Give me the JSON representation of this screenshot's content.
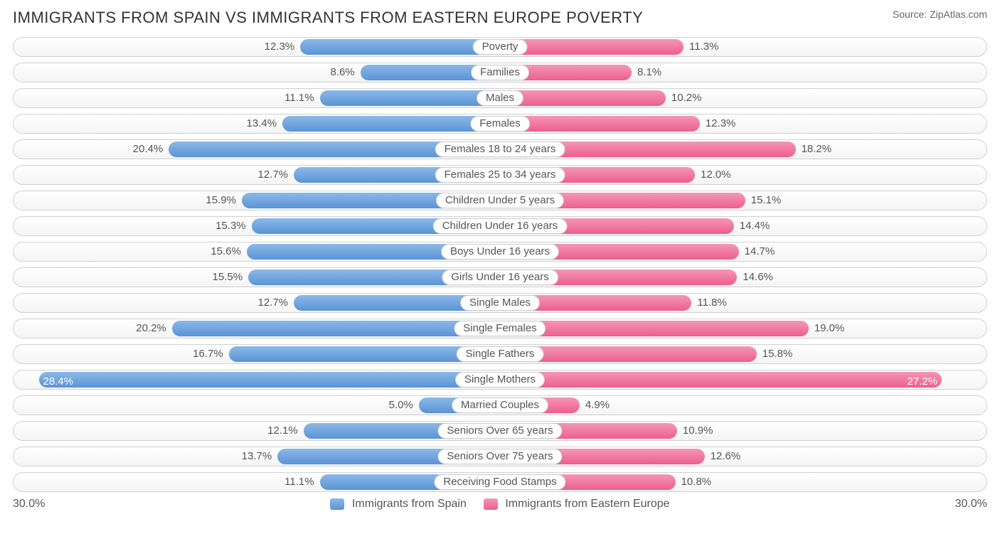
{
  "title": "IMMIGRANTS FROM SPAIN VS IMMIGRANTS FROM EASTERN EUROPE POVERTY",
  "source": "Source: ZipAtlas.com",
  "axis_max_label": "30.0%",
  "axis_max": 30.0,
  "inside_threshold": 27.0,
  "series": {
    "left": {
      "label": "Immigrants from Spain",
      "gradient_top": "#8bb9e8",
      "gradient_bottom": "#5a94d6"
    },
    "right": {
      "label": "Immigrants from Eastern Europe",
      "gradient_top": "#f596b6",
      "gradient_bottom": "#ec5f8f"
    }
  },
  "rows": [
    {
      "category": "Poverty",
      "left_val": 12.3,
      "left_label": "12.3%",
      "right_val": 11.3,
      "right_label": "11.3%"
    },
    {
      "category": "Families",
      "left_val": 8.6,
      "left_label": "8.6%",
      "right_val": 8.1,
      "right_label": "8.1%"
    },
    {
      "category": "Males",
      "left_val": 11.1,
      "left_label": "11.1%",
      "right_val": 10.2,
      "right_label": "10.2%"
    },
    {
      "category": "Females",
      "left_val": 13.4,
      "left_label": "13.4%",
      "right_val": 12.3,
      "right_label": "12.3%"
    },
    {
      "category": "Females 18 to 24 years",
      "left_val": 20.4,
      "left_label": "20.4%",
      "right_val": 18.2,
      "right_label": "18.2%"
    },
    {
      "category": "Females 25 to 34 years",
      "left_val": 12.7,
      "left_label": "12.7%",
      "right_val": 12.0,
      "right_label": "12.0%"
    },
    {
      "category": "Children Under 5 years",
      "left_val": 15.9,
      "left_label": "15.9%",
      "right_val": 15.1,
      "right_label": "15.1%"
    },
    {
      "category": "Children Under 16 years",
      "left_val": 15.3,
      "left_label": "15.3%",
      "right_val": 14.4,
      "right_label": "14.4%"
    },
    {
      "category": "Boys Under 16 years",
      "left_val": 15.6,
      "left_label": "15.6%",
      "right_val": 14.7,
      "right_label": "14.7%"
    },
    {
      "category": "Girls Under 16 years",
      "left_val": 15.5,
      "left_label": "15.5%",
      "right_val": 14.6,
      "right_label": "14.6%"
    },
    {
      "category": "Single Males",
      "left_val": 12.7,
      "left_label": "12.7%",
      "right_val": 11.8,
      "right_label": "11.8%"
    },
    {
      "category": "Single Females",
      "left_val": 20.2,
      "left_label": "20.2%",
      "right_val": 19.0,
      "right_label": "19.0%"
    },
    {
      "category": "Single Fathers",
      "left_val": 16.7,
      "left_label": "16.7%",
      "right_val": 15.8,
      "right_label": "15.8%"
    },
    {
      "category": "Single Mothers",
      "left_val": 28.4,
      "left_label": "28.4%",
      "right_val": 27.2,
      "right_label": "27.2%"
    },
    {
      "category": "Married Couples",
      "left_val": 5.0,
      "left_label": "5.0%",
      "right_val": 4.9,
      "right_label": "4.9%"
    },
    {
      "category": "Seniors Over 65 years",
      "left_val": 12.1,
      "left_label": "12.1%",
      "right_val": 10.9,
      "right_label": "10.9%"
    },
    {
      "category": "Seniors Over 75 years",
      "left_val": 13.7,
      "left_label": "13.7%",
      "right_val": 12.6,
      "right_label": "12.6%"
    },
    {
      "category": "Receiving Food Stamps",
      "left_val": 11.1,
      "left_label": "11.1%",
      "right_val": 10.8,
      "right_label": "10.8%"
    }
  ]
}
